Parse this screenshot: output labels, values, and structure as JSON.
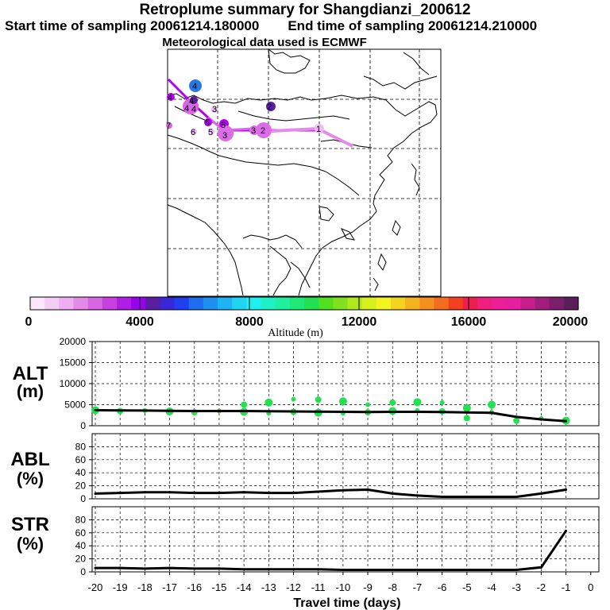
{
  "header": {
    "title": "Retroplume summary for Shangdianzi_200612",
    "start_label": "Start time of sampling 20061214.180000",
    "end_label": "End time of sampling 20061214.210000",
    "met_label": "Meteorological data used is ECMWF"
  },
  "map": {
    "labels": [
      "4",
      "4",
      "4",
      "4",
      "4",
      "5",
      "5",
      "5",
      "6",
      "7",
      "3",
      "2",
      "2",
      "1",
      "3",
      "3"
    ],
    "colors": {
      "light": "#ecbcf4",
      "mid": "#dc6ce8",
      "violet": "#b400f0",
      "dark": "#5a1ea0",
      "blue": "#2878e6"
    }
  },
  "colorbar": {
    "ticks": [
      "0",
      "4000",
      "8000",
      "12000",
      "16000",
      "20000"
    ],
    "label": "Altitude (m)",
    "colors": [
      "#fce8fc",
      "#f4cdf4",
      "#eeaef0",
      "#e48ae8",
      "#d866e4",
      "#c940e0",
      "#b01ee6",
      "#9a00f0",
      "#5a1ea0",
      "#3a28d8",
      "#2040f0",
      "#1e6cf0",
      "#1e90f0",
      "#1eb4f4",
      "#1ed6f4",
      "#1ef0f0",
      "#1ef0c8",
      "#1ef0a0",
      "#1ee878",
      "#22e050",
      "#50e01e",
      "#82e01e",
      "#b0e81e",
      "#d8f01e",
      "#f4f41e",
      "#f4d41e",
      "#f4b41e",
      "#f4901e",
      "#f46c1e",
      "#f4401e",
      "#ee1e50",
      "#f01e7c",
      "#ee1e98",
      "#e81ea0",
      "#c81e8c",
      "#a01e7c",
      "#7c1e6c",
      "#5a1e5a"
    ]
  },
  "chart_data": [
    {
      "type": "line",
      "title": "ALT (m)",
      "ylabel_top": "ALT",
      "ylabel_bottom": "(m)",
      "ylim": [
        0,
        20000
      ],
      "yticks": [
        "0",
        "5000",
        "10000",
        "15000",
        "20000"
      ],
      "yticks_values": [
        0,
        5000,
        10000,
        15000,
        20000
      ],
      "x": [
        -20,
        -19,
        -18,
        -17,
        -16,
        -15,
        -14,
        -13,
        -12,
        -11,
        -10,
        -9,
        -8,
        -7,
        -6,
        -5,
        -4,
        -3,
        -2,
        -1
      ],
      "values": [
        3700,
        3650,
        3600,
        3550,
        3500,
        3500,
        3500,
        3450,
        3400,
        3350,
        3300,
        3250,
        3300,
        3300,
        3250,
        3150,
        3050,
        2100,
        1500,
        1100
      ],
      "scatter_x": [
        -20,
        -19,
        -18,
        -17,
        -16,
        -15,
        -14,
        -14,
        -13,
        -13,
        -12,
        -12,
        -11,
        -11,
        -10,
        -10,
        -9,
        -9,
        -8,
        -8,
        -7,
        -7,
        -6,
        -6,
        -5,
        -5,
        -4,
        -4,
        -3,
        -2,
        -1
      ],
      "scatter_y": [
        3700,
        3500,
        3600,
        3400,
        3200,
        3500,
        3300,
        5000,
        3000,
        5500,
        3300,
        6300,
        3100,
        6200,
        3000,
        5800,
        3200,
        5000,
        3500,
        5500,
        3600,
        5600,
        3400,
        5500,
        4200,
        1800,
        3200,
        5000,
        1200,
        1700,
        1200
      ],
      "scatter_color": "#22e050"
    },
    {
      "type": "line",
      "title": "ABL (%)",
      "ylabel_top": "ABL",
      "ylabel_bottom": "(%)",
      "ylim": [
        0,
        100
      ],
      "yticks": [
        "0",
        "20",
        "40",
        "60",
        "80"
      ],
      "yticks_values": [
        0,
        20,
        40,
        60,
        80
      ],
      "x": [
        -20,
        -19,
        -18,
        -17,
        -16,
        -15,
        -14,
        -13,
        -12,
        -11,
        -10,
        -9,
        -8,
        -7,
        -6,
        -5,
        -4,
        -3,
        -2,
        -1
      ],
      "values": [
        8,
        9,
        10,
        10,
        9,
        9,
        10,
        9,
        9,
        11,
        13,
        14,
        8,
        5,
        3,
        3,
        3,
        3,
        8,
        14
      ]
    },
    {
      "type": "line",
      "title": "STR (%)",
      "ylabel_top": "STR",
      "ylabel_bottom": "(%)",
      "ylim": [
        0,
        100
      ],
      "yticks": [
        "0",
        "20",
        "40",
        "60",
        "80"
      ],
      "yticks_values": [
        0,
        20,
        40,
        60,
        80
      ],
      "x": [
        -20,
        -19,
        -18,
        -17,
        -16,
        -15,
        -14,
        -13,
        -12,
        -11,
        -10,
        -9,
        -8,
        -7,
        -6,
        -5,
        -4,
        -3,
        -2,
        -1
      ],
      "values": [
        6,
        6,
        5,
        6,
        5,
        5,
        4,
        4,
        4,
        4,
        3,
        3,
        3,
        3,
        3,
        3,
        3,
        3,
        7,
        63
      ],
      "xlabel": "Travel time (days)",
      "xticks": [
        "-20",
        "-19",
        "-18",
        "-17",
        "-16",
        "-15",
        "-14",
        "-13",
        "-12",
        "-11",
        "-10",
        "-9",
        "-8",
        "-7",
        "-6",
        "-5",
        "-4",
        "-3",
        "-2",
        "-1",
        "0"
      ],
      "xticks_values": [
        -20,
        -19,
        -18,
        -17,
        -16,
        -15,
        -14,
        -13,
        -12,
        -11,
        -10,
        -9,
        -8,
        -7,
        -6,
        -5,
        -4,
        -3,
        -2,
        -1,
        0
      ]
    }
  ]
}
